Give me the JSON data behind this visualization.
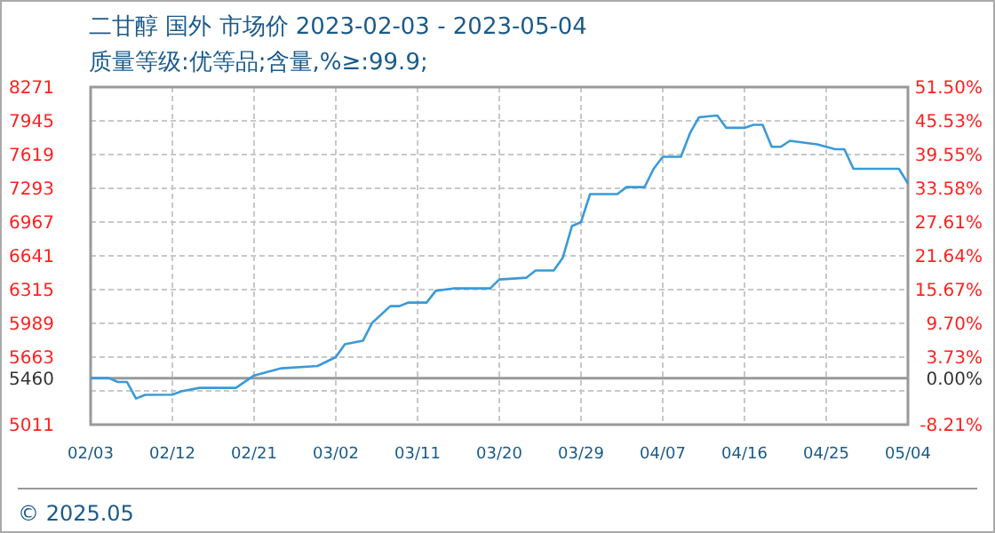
{
  "chart_data": {
    "type": "line",
    "title": "二甘醇 国外 市场价 2023-02-03 - 2023-05-04",
    "subtitle": "质量等级:优等品;含量,%≥:99.9;",
    "annotations": [
      "© 2025.05"
    ],
    "x": [
      "2023-02-03",
      "2023-02-05",
      "2023-02-06",
      "2023-02-07",
      "2023-02-08",
      "2023-02-09",
      "2023-02-12",
      "2023-02-13",
      "2023-02-15",
      "2023-02-19",
      "2023-02-21",
      "2023-02-22",
      "2023-02-24",
      "2023-02-28",
      "2023-03-02",
      "2023-03-03",
      "2023-03-05",
      "2023-03-06",
      "2023-03-08",
      "2023-03-09",
      "2023-03-10",
      "2023-03-12",
      "2023-03-13",
      "2023-03-15",
      "2023-03-19",
      "2023-03-20",
      "2023-03-23",
      "2023-03-24",
      "2023-03-26",
      "2023-03-27",
      "2023-03-28",
      "2023-03-29",
      "2023-03-30",
      "2023-04-02",
      "2023-04-03",
      "2023-04-05",
      "2023-04-06",
      "2023-04-07",
      "2023-04-09",
      "2023-04-10",
      "2023-04-11",
      "2023-04-13",
      "2023-04-14",
      "2023-04-16",
      "2023-04-17",
      "2023-04-18",
      "2023-04-19",
      "2023-04-20",
      "2023-04-21",
      "2023-04-24",
      "2023-04-26",
      "2023-04-27",
      "2023-04-28",
      "2023-05-03",
      "2023-05-04"
    ],
    "series": [
      {
        "color": "#3a9ad9",
        "values": [
          5460,
          5460,
          5423,
          5423,
          5263,
          5298,
          5300,
          5332,
          5366,
          5366,
          5486,
          5509,
          5555,
          5577,
          5663,
          5788,
          5822,
          5994,
          6155,
          6155,
          6190,
          6190,
          6303,
          6327,
          6327,
          6413,
          6430,
          6499,
          6499,
          6624,
          6928,
          6967,
          7237,
          7237,
          7305,
          7305,
          7482,
          7597,
          7597,
          7825,
          7980,
          7997,
          7877,
          7877,
          7906,
          7906,
          7694,
          7694,
          7752,
          7717,
          7671,
          7671,
          7482,
          7482,
          7339
        ]
      }
    ],
    "xlim": [
      "2023-02-03",
      "2023-05-04"
    ],
    "xticks": [
      {
        "value": "2023-02-03",
        "label": "02/03"
      },
      {
        "value": "2023-02-12",
        "label": "02/12"
      },
      {
        "value": "2023-02-21",
        "label": "02/21"
      },
      {
        "value": "2023-03-02",
        "label": "03/02"
      },
      {
        "value": "2023-03-11",
        "label": "03/11"
      },
      {
        "value": "2023-03-20",
        "label": "03/20"
      },
      {
        "value": "2023-03-29",
        "label": "03/29"
      },
      {
        "value": "2023-04-07",
        "label": "04/07"
      },
      {
        "value": "2023-04-16",
        "label": "04/16"
      },
      {
        "value": "2023-04-25",
        "label": "04/25"
      },
      {
        "value": "2023-05-04",
        "label": "05/04"
      }
    ],
    "ylim": [
      5011,
      8271
    ],
    "yticks": [
      8271,
      7945,
      7619,
      7293,
      6967,
      6641,
      6315,
      5989,
      5663,
      5460,
      {
        "value": 5337,
        "label": null
      },
      5011
    ],
    "y2lim": [
      -8.21,
      51.5
    ],
    "y2ticks": [
      {
        "value": 51.5,
        "label": "51.50%"
      },
      {
        "value": 45.53,
        "label": "45.53%"
      },
      {
        "value": 39.55,
        "label": "39.55%"
      },
      {
        "value": 33.58,
        "label": "33.58%"
      },
      {
        "value": 27.61,
        "label": "27.61%"
      },
      {
        "value": 21.64,
        "label": "21.64%"
      },
      {
        "value": 15.67,
        "label": "15.67%"
      },
      {
        "value": 9.7,
        "label": "9.70%"
      },
      {
        "value": 3.73,
        "label": "3.73%"
      },
      {
        "value": 0,
        "label": "0.00%"
      },
      {
        "value": -8.21,
        "label": "-8.21%"
      }
    ],
    "ref_lines": [
      {
        "axis": "y",
        "value": 5460,
        "color": "#999999"
      }
    ],
    "grid": true,
    "marker": "none",
    "line_style": "solid"
  }
}
